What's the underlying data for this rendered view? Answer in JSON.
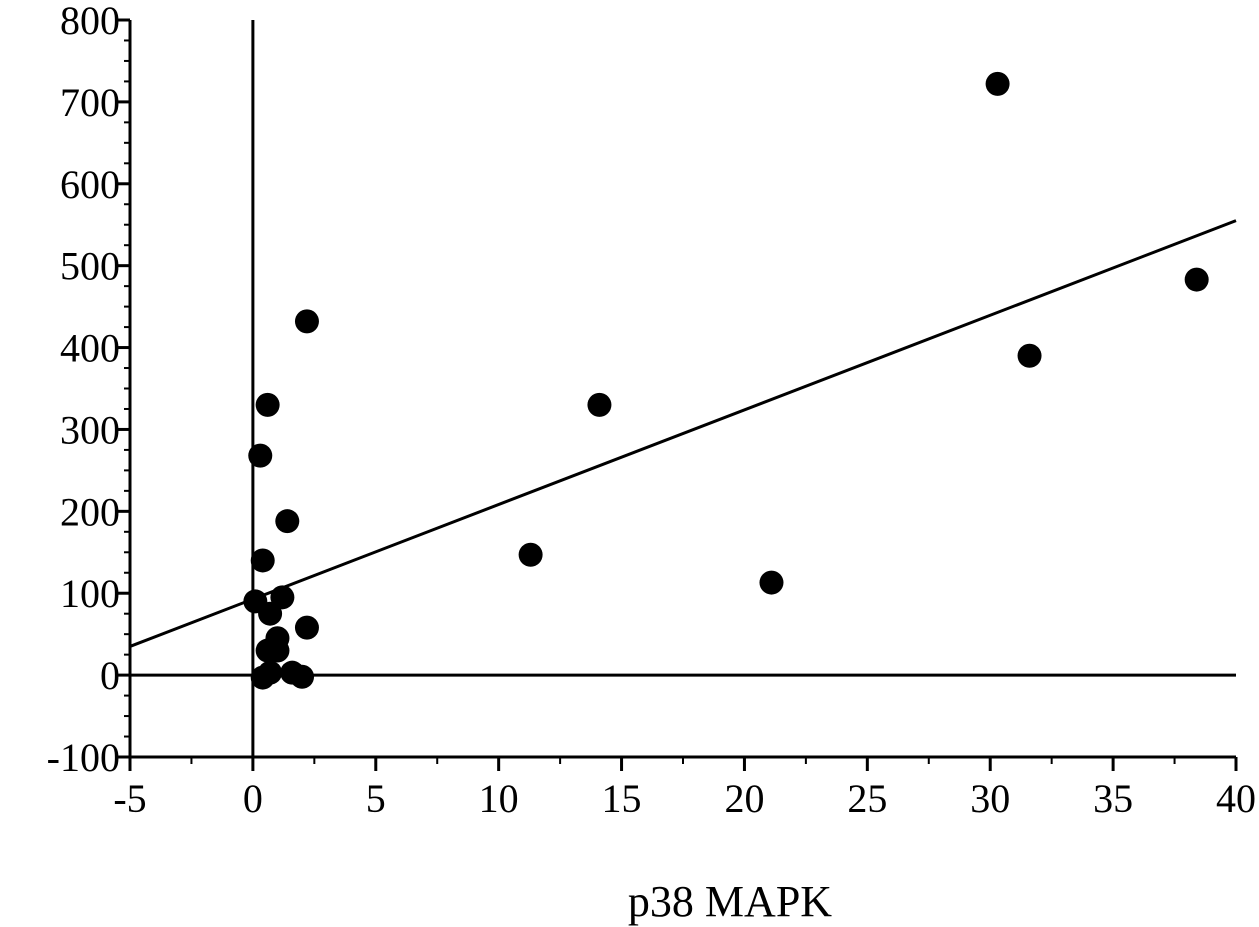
{
  "chart_data": {
    "type": "scatter",
    "title": "",
    "xlabel": "p38 MAPK",
    "ylabel": "",
    "xlim": [
      -5,
      40
    ],
    "ylim": [
      -100,
      800
    ],
    "x_ticks": [
      -5,
      0,
      5,
      10,
      15,
      20,
      25,
      30,
      35,
      40
    ],
    "y_ticks": [
      -100,
      0,
      100,
      200,
      300,
      400,
      500,
      600,
      700,
      800
    ],
    "x_minor_step": 2.5,
    "y_minor_step": 25,
    "grid": false,
    "zero_lines": true,
    "series": [
      {
        "marker": "filled-circle",
        "color": "#000000",
        "points": [
          {
            "x": 0.1,
            "y": 90
          },
          {
            "x": 0.3,
            "y": 268
          },
          {
            "x": 0.4,
            "y": 140
          },
          {
            "x": 0.4,
            "y": -3
          },
          {
            "x": 0.6,
            "y": 330
          },
          {
            "x": 0.6,
            "y": 30
          },
          {
            "x": 0.7,
            "y": 75
          },
          {
            "x": 0.7,
            "y": 3
          },
          {
            "x": 1.0,
            "y": 45
          },
          {
            "x": 1.0,
            "y": 30
          },
          {
            "x": 1.2,
            "y": 95
          },
          {
            "x": 1.4,
            "y": 188
          },
          {
            "x": 1.6,
            "y": 3
          },
          {
            "x": 2.0,
            "y": -2
          },
          {
            "x": 2.2,
            "y": 432
          },
          {
            "x": 2.2,
            "y": 58
          },
          {
            "x": 11.3,
            "y": 147
          },
          {
            "x": 14.1,
            "y": 330
          },
          {
            "x": 21.1,
            "y": 113
          },
          {
            "x": 30.3,
            "y": 722
          },
          {
            "x": 31.6,
            "y": 390
          },
          {
            "x": 38.4,
            "y": 483
          }
        ]
      }
    ],
    "trendline": {
      "x": [
        -5,
        40
      ],
      "y": [
        35,
        555
      ]
    }
  }
}
